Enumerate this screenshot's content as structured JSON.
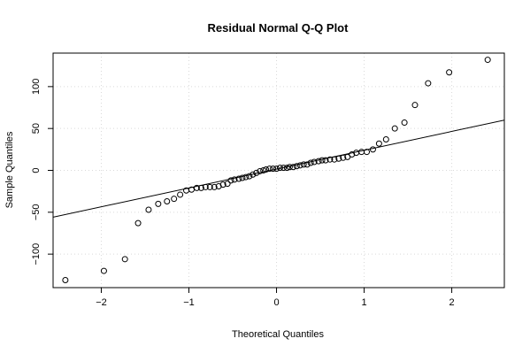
{
  "chart_data": {
    "type": "scatter",
    "title": "Residual Normal Q-Q Plot",
    "xlabel": "Theoretical Quantiles",
    "ylabel": "Sample Quantiles",
    "xlim": [
      -2.55,
      2.6
    ],
    "ylim": [
      -140,
      140
    ],
    "x_ticks": [
      -2,
      -1,
      0,
      1,
      2
    ],
    "x_tick_labels": [
      "−2",
      "−1",
      "0",
      "1",
      "2"
    ],
    "y_ticks": [
      -100,
      -50,
      0,
      50,
      100
    ],
    "y_tick_labels": [
      "−100",
      "−50",
      "0",
      "50",
      "100"
    ],
    "grid": true,
    "series": [
      {
        "marker": "open-circle",
        "x": [
          -2.41,
          -1.97,
          -1.73,
          -1.58,
          -1.46,
          -1.35,
          -1.25,
          -1.17,
          -1.1,
          -1.03,
          -0.97,
          -0.91,
          -0.86,
          -0.81,
          -0.76,
          -0.71,
          -0.66,
          -0.61,
          -0.56,
          -0.52,
          -0.48,
          -0.43,
          -0.39,
          -0.35,
          -0.31,
          -0.27,
          -0.23,
          -0.19,
          -0.15,
          -0.12,
          -0.08,
          -0.04,
          0.0,
          0.04,
          0.08,
          0.12,
          0.15,
          0.19,
          0.23,
          0.27,
          0.31,
          0.35,
          0.39,
          0.43,
          0.48,
          0.52,
          0.56,
          0.61,
          0.66,
          0.71,
          0.76,
          0.81,
          0.86,
          0.91,
          0.97,
          1.03,
          1.1,
          1.17,
          1.25,
          1.35,
          1.46,
          1.58,
          1.73,
          1.97,
          2.41
        ],
        "y": [
          -131,
          -120,
          -106,
          -63,
          -47,
          -40,
          -37,
          -34,
          -29,
          -24,
          -23,
          -21,
          -21,
          -20,
          -20,
          -20,
          -19,
          -17,
          -16,
          -12,
          -11,
          -10,
          -9,
          -8,
          -7,
          -5,
          -3,
          -1,
          0,
          1,
          2,
          2,
          2,
          3,
          3,
          3,
          4,
          4,
          5,
          6,
          7,
          7,
          9,
          10,
          11,
          12,
          12,
          13,
          13,
          14,
          15,
          16,
          19,
          21,
          22,
          22,
          25,
          32,
          37,
          50,
          57,
          78,
          104,
          117,
          132
        ]
      }
    ],
    "reference_line": {
      "intercept": 1.5,
      "slope": 22.5
    }
  }
}
